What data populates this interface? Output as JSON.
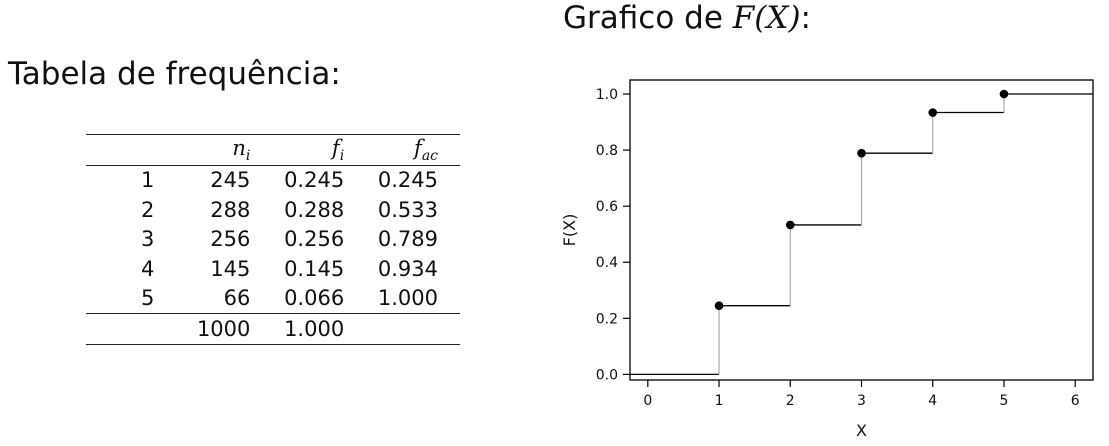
{
  "left": {
    "title": "Tabela de frequência:"
  },
  "right": {
    "title_prefix": "Grafico de ",
    "title_formula": "F(X)",
    "title_suffix": ":"
  },
  "table": {
    "headers": [
      "",
      "n",
      "f",
      "f"
    ],
    "header_subs": [
      "",
      "i",
      "i",
      "ac"
    ],
    "rows": [
      [
        "1",
        "245",
        "0.245",
        "0.245"
      ],
      [
        "2",
        "288",
        "0.288",
        "0.533"
      ],
      [
        "3",
        "256",
        "0.256",
        "0.789"
      ],
      [
        "4",
        "145",
        "0.145",
        "0.934"
      ],
      [
        "5",
        "66",
        "0.066",
        "1.000"
      ]
    ],
    "total": [
      "",
      "1000",
      "1.000",
      ""
    ]
  },
  "chart_data": {
    "type": "line",
    "subtype": "step-ecdf",
    "xlabel": "X",
    "ylabel": "F(X)",
    "xlim": [
      -0.25,
      6.25
    ],
    "ylim": [
      -0.02,
      1.05
    ],
    "xticks": [
      "0",
      "1",
      "2",
      "3",
      "4",
      "5",
      "6"
    ],
    "yticks": [
      "0.0",
      "0.2",
      "0.4",
      "0.6",
      "0.8",
      "1.0"
    ],
    "x": [
      1,
      2,
      3,
      4,
      5
    ],
    "y": [
      0.245,
      0.533,
      0.789,
      0.934,
      1.0
    ],
    "grid": false,
    "line_color": "#000000",
    "jump_color": "#aaaaaa"
  }
}
